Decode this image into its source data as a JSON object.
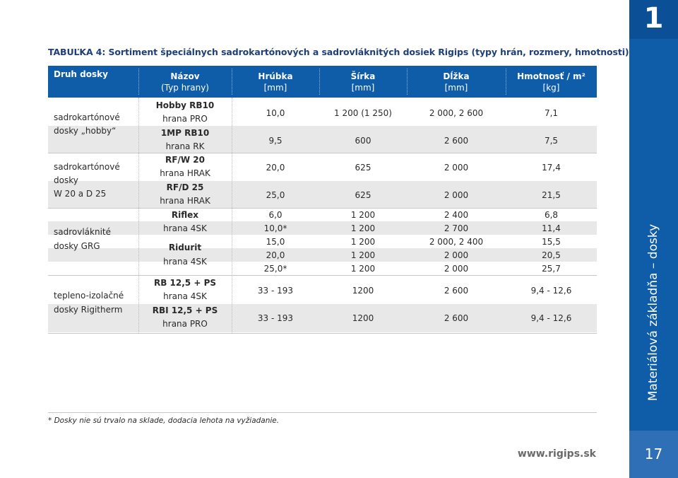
{
  "title": "TABUĽKA 4: Sortiment špeciálnych sadrokartónových a sadrovláknitých dosiek Rigips (typy hrán, rozmery, hmotnosti)",
  "header": {
    "druh": "Druh dosky",
    "nazov": [
      "Názov",
      "(Typ hrany)"
    ],
    "hrubka": [
      "Hrúbka",
      "[mm]"
    ],
    "sirka": [
      "Šírka",
      "[mm]"
    ],
    "dlzka": [
      "Dĺžka",
      "[mm]"
    ],
    "hmotnost": [
      "Hmotnosť / m²",
      "[kg]"
    ]
  },
  "groups": [
    {
      "lines": [
        "sadrokartónové",
        "dosky „hobby“"
      ]
    },
    {
      "lines": [
        "sadrokartónové",
        "dosky",
        "W 20 a D 25"
      ]
    },
    {
      "lines": [
        "sadrovláknité",
        "dosky GRG"
      ]
    },
    {
      "lines": [
        "tepleno-izolačné",
        "dosky Rigitherm"
      ]
    }
  ],
  "products": [
    {
      "name": "Hobby RB10",
      "edge": "hrana PRO"
    },
    {
      "name": "1MP RB10",
      "edge": "hrana RK"
    },
    {
      "name": "RF/W 20",
      "edge": "hrana HRAK"
    },
    {
      "name": "RF/D 25",
      "edge": "hrana HRAK"
    },
    {
      "name": "Riflex",
      "edge": "hrana 4SK"
    },
    {
      "name": "Ridurit",
      "edge": "hrana 4SK"
    },
    {
      "name": "RB 12,5 + PS",
      "edge": "hrana 4SK"
    },
    {
      "name": "RBI 12,5 + PS",
      "edge": "hrana PRO"
    }
  ],
  "rows": [
    {
      "hrubka": "10,0",
      "sirka": "1 200 (1 250)",
      "dlzka": "2 000, 2 600",
      "hmotnost": "7,1"
    },
    {
      "hrubka": "9,5",
      "sirka": "600",
      "dlzka": "2 600",
      "hmotnost": "7,5"
    },
    {
      "hrubka": "20,0",
      "sirka": "625",
      "dlzka": "2 000",
      "hmotnost": "17,4"
    },
    {
      "hrubka": "25,0",
      "sirka": "625",
      "dlzka": "2 000",
      "hmotnost": "21,5"
    },
    {
      "hrubka": "6,0",
      "sirka": "1 200",
      "dlzka": "2 400",
      "hmotnost": "6,8"
    },
    {
      "hrubka": "10,0*",
      "sirka": "1 200",
      "dlzka": "2 700",
      "hmotnost": "11,4"
    },
    {
      "hrubka": "15,0",
      "sirka": "1 200",
      "dlzka": "2 000, 2 400",
      "hmotnost": "15,5"
    },
    {
      "hrubka": "20,0",
      "sirka": "1 200",
      "dlzka": "2 000",
      "hmotnost": "20,5"
    },
    {
      "hrubka": "25,0*",
      "sirka": "1 200",
      "dlzka": "2 000",
      "hmotnost": "25,7"
    },
    {
      "hrubka": "33 - 193",
      "sirka": "1200",
      "dlzka": "2 600",
      "hmotnost": "9,4 - 12,6"
    },
    {
      "hrubka": "33 - 193",
      "sirka": "1200",
      "dlzka": "2 600",
      "hmotnost": "9,4 - 12,6"
    }
  ],
  "footnote": "* Dosky nie sú trvalo na sklade, dodacia lehota na vyžiadanie.",
  "website": "www.rigips.sk",
  "sidebar": {
    "chapter": "1",
    "section_title": "Materiálová základňa – dosky",
    "page_number": "17"
  },
  "colors": {
    "brand_blue": "#0f5ca8",
    "title_blue": "#1e3f7a",
    "band_gray": "#e8e8e8"
  }
}
